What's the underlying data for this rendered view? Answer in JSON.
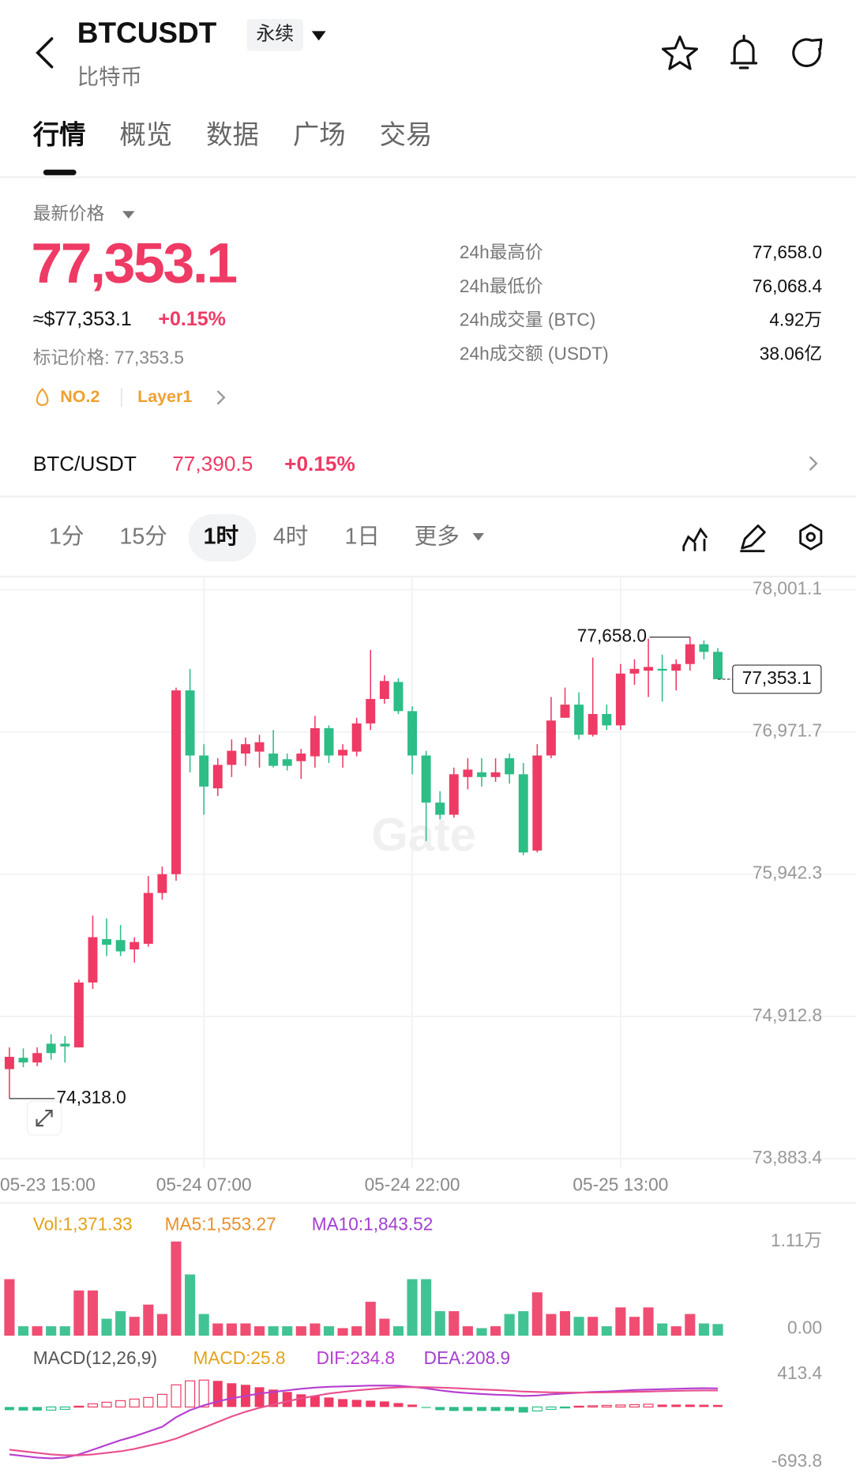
{
  "header": {
    "symbol": "BTCUSDT",
    "contract": "永续",
    "name": "比特币"
  },
  "tabs": {
    "items": [
      "行情",
      "概览",
      "数据",
      "广场",
      "交易"
    ],
    "active": 0
  },
  "price": {
    "label": "最新价格",
    "last": "77,353.1",
    "usd": "≈$77,353.1",
    "change": "+0.15%",
    "mark": "标记价格: 77,353.5",
    "rank": "NO.2",
    "sector": "Layer1"
  },
  "stats": [
    {
      "label": "24h最高价",
      "value": "77,658.0"
    },
    {
      "label": "24h最低价",
      "value": "76,068.4"
    },
    {
      "label": "24h成交量 (BTC)",
      "value": "4.92万"
    },
    {
      "label": "24h成交额 (USDT)",
      "value": "38.06亿"
    }
  ],
  "spot": {
    "pair": "BTC/USDT",
    "price": "77,390.5",
    "change": "+0.15%"
  },
  "intervals": {
    "items": [
      "1分",
      "15分",
      "1时",
      "4时",
      "1日",
      "更多"
    ],
    "active": 2
  },
  "chart_data": [
    {
      "type": "candlestick",
      "categories": [
        "05-23 15:00",
        null,
        null,
        null,
        null,
        null,
        null,
        null,
        null,
        null,
        null,
        null,
        null,
        null,
        "05-24 07:00",
        null,
        null,
        null,
        null,
        null,
        null,
        null,
        null,
        null,
        null,
        null,
        null,
        null,
        null,
        "05-24 22:00",
        null,
        null,
        null,
        null,
        null,
        null,
        null,
        null,
        null,
        null,
        null,
        null,
        null,
        null,
        "05-25 13:00",
        null,
        null,
        null,
        null,
        null,
        null,
        null
      ],
      "open": [
        74531,
        74613,
        74579,
        74715,
        74715,
        74688,
        75158,
        75472,
        75465,
        75397,
        75438,
        75806,
        75942,
        77272,
        76801,
        76563,
        76733,
        76815,
        76829,
        76815,
        76774,
        76760,
        76795,
        76999,
        76801,
        76829,
        77033,
        77210,
        77333,
        77122,
        76801,
        76460,
        76372,
        76645,
        76679,
        76645,
        76781,
        76665,
        76113,
        76801,
        77074,
        77169,
        76951,
        77101,
        77019,
        77394,
        77415,
        77428,
        77415,
        77463,
        77606,
        77551
      ],
      "high": [
        74688,
        74681,
        74688,
        74783,
        74770,
        75179,
        75642,
        75622,
        75574,
        75486,
        75929,
        75997,
        77292,
        77428,
        76883,
        76781,
        76917,
        76931,
        76951,
        76985,
        76815,
        76849,
        77088,
        77019,
        76883,
        77074,
        77565,
        77381,
        77360,
        77156,
        76835,
        76542,
        76713,
        76781,
        76781,
        76781,
        76815,
        76747,
        76883,
        77224,
        77292,
        77258,
        77510,
        77169,
        77463,
        77497,
        77647,
        77531,
        77497,
        77658.0,
        77633,
        77578
      ],
      "low": [
        74318.0,
        74545,
        74552,
        74599,
        74579,
        74688,
        75111,
        75349,
        75349,
        75302,
        75417,
        75758,
        75895,
        76679,
        76372,
        76508,
        76645,
        76726,
        76713,
        76713,
        76692,
        76631,
        76713,
        76747,
        76713,
        76795,
        76985,
        77176,
        77101,
        76665,
        76181,
        76338,
        76351,
        76556,
        76576,
        76610,
        76597,
        76079,
        76099,
        76781,
        77074,
        76917,
        76938,
        76985,
        76985,
        77313,
        77224,
        77190,
        77272,
        77415,
        77497,
        77360
      ],
      "close": [
        74620,
        74579,
        74647,
        74647,
        74695,
        75158,
        75486,
        75431,
        75383,
        75451,
        75806,
        75942,
        77272,
        76801,
        76576,
        76733,
        76835,
        76883,
        76897,
        76726,
        76726,
        76815,
        76999,
        76801,
        76842,
        77033,
        77210,
        77340,
        77122,
        76801,
        76460,
        76372,
        76665,
        76699,
        76645,
        76679,
        76665,
        76099,
        76801,
        77054,
        77169,
        76951,
        77101,
        77019,
        77394,
        77428,
        77442,
        77415,
        77463,
        77606,
        77551,
        77353.1
      ],
      "up_color": "#ee3a64",
      "down_color": "#2dbd87",
      "ylim": [
        73883.4,
        78001.1
      ],
      "yticks": [
        {
          "value": 78001.1,
          "label": "78,001.1"
        },
        {
          "value": 76971.7,
          "label": "76,971.7"
        },
        {
          "value": 75942.3,
          "label": "75,942.3"
        },
        {
          "value": 74912.8,
          "label": "74,912.8"
        },
        {
          "value": 73883.4,
          "label": "73,883.4"
        }
      ],
      "grid": true,
      "high_label": "77,658.0",
      "low_label": "74,318.0",
      "last_label": "77,353.1",
      "watermark": "Gate"
    },
    {
      "type": "volume",
      "values": [
        6660,
        1110,
        1110,
        1110,
        1110,
        5328,
        5328,
        1998,
        2886,
        2220,
        3663,
        2553,
        11100,
        7215,
        2553,
        1443,
        1443,
        1443,
        1110,
        1110,
        1110,
        1110,
        1443,
        1110,
        888,
        1110,
        3996,
        1998,
        1110,
        6660,
        6660,
        2886,
        2886,
        1110,
        888,
        1110,
        2553,
        2886,
        5106,
        2553,
        2886,
        2220,
        2220,
        1110,
        3330,
        2220,
        3330,
        1443,
        1110,
        2553,
        1443,
        1371.33
      ],
      "ylim": [
        0,
        11100
      ],
      "yticks": [
        {
          "value": 11100,
          "label": "1.11万"
        },
        {
          "value": 0,
          "label": "0.00"
        }
      ],
      "legend": [
        {
          "text": "Vol:1,371.33",
          "color": "#e3a21a"
        },
        {
          "text": "MA5:1,553.27",
          "color": "#e8902a"
        },
        {
          "text": "MA10:1,843.52",
          "color": "#a23fcf"
        }
      ]
    },
    {
      "type": "macd",
      "histogram": [
        -40,
        -45,
        -45,
        -40,
        -30,
        10,
        40,
        60,
        80,
        100,
        120,
        160,
        280,
        330,
        340,
        330,
        300,
        280,
        250,
        220,
        190,
        160,
        140,
        120,
        100,
        90,
        80,
        70,
        50,
        30,
        -10,
        -40,
        -50,
        -50,
        -50,
        -50,
        -50,
        -70,
        -50,
        -30,
        -10,
        10,
        15,
        20,
        25,
        30,
        35,
        30,
        30,
        30,
        28,
        25.8
      ],
      "dif": [
        -600,
        -620,
        -640,
        -650,
        -640,
        -600,
        -540,
        -480,
        -420,
        -370,
        -310,
        -250,
        -130,
        -40,
        20,
        70,
        110,
        140,
        170,
        190,
        210,
        230,
        245,
        255,
        260,
        265,
        270,
        272,
        268,
        255,
        235,
        210,
        190,
        175,
        165,
        155,
        150,
        140,
        145,
        160,
        170,
        180,
        190,
        195,
        205,
        215,
        220,
        225,
        230,
        235,
        237,
        234.8
      ],
      "dea": [
        -540,
        -560,
        -580,
        -600,
        -610,
        -610,
        -600,
        -580,
        -560,
        -530,
        -490,
        -450,
        -400,
        -330,
        -260,
        -190,
        -120,
        -60,
        -10,
        30,
        70,
        110,
        140,
        170,
        190,
        210,
        225,
        238,
        248,
        252,
        250,
        245,
        238,
        230,
        222,
        214,
        205,
        196,
        190,
        185,
        183,
        182,
        183,
        185,
        188,
        192,
        196,
        200,
        204,
        207,
        209,
        208.9
      ],
      "dif_color": "#b53fd0",
      "dea_color": "#e8508f",
      "ylim": [
        -693.8,
        413.4
      ],
      "yticks": [
        413.4,
        -693.8
      ],
      "legend": [
        {
          "text": "MACD(12,26,9)",
          "color": "#555555"
        },
        {
          "text": "MACD:25.8",
          "color": "#e3a21a"
        },
        {
          "text": "DIF:234.8",
          "color": "#b53fd0"
        },
        {
          "text": "DEA:208.9",
          "color": "#a23fcf"
        }
      ]
    }
  ]
}
